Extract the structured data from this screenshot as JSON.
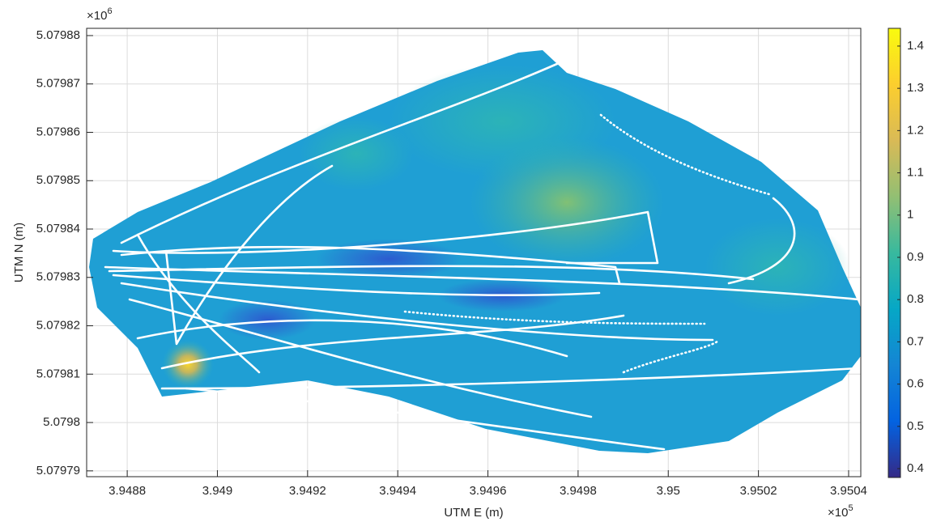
{
  "chart_data": {
    "type": "heatmap",
    "xlabel": "UTM E  (m)",
    "ylabel": "UTM N  (m)",
    "x_multiplier": {
      "base": "×10",
      "power": "5"
    },
    "y_multiplier": {
      "base": "×10",
      "power": "6"
    },
    "xlim": [
      3.94871,
      3.950427
    ],
    "xticks": [
      3.9488,
      3.949,
      3.9492,
      3.9494,
      3.9496,
      3.9498,
      3.95,
      3.9502,
      3.9504
    ],
    "ylim": [
      5.0797888,
      5.0798815
    ],
    "yticks": [
      5.07979,
      5.0798,
      5.07981,
      5.07982,
      5.07983,
      5.07984,
      5.07985,
      5.07986,
      5.07987,
      5.07988
    ],
    "grid": true,
    "clim": [
      0.379,
      1.442
    ],
    "cticks": [
      0.4,
      0.5,
      0.6,
      0.7,
      0.8,
      0.9,
      1,
      1.1,
      1.2,
      1.3,
      1.4
    ],
    "colormap": [
      "#352a87",
      "#0363e1",
      "#1485d4",
      "#06a7c6",
      "#38b99e",
      "#92bf73",
      "#d9ba56",
      "#fcce2e",
      "#f9fb0e"
    ]
  }
}
